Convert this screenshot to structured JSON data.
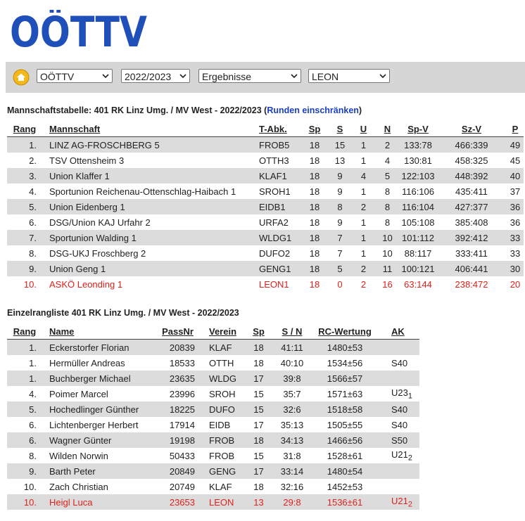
{
  "logo": "OÖTTV",
  "toolbar": {
    "selects": [
      "OÖTTV",
      "2022/2023",
      "Ergebnisse",
      "LEON"
    ]
  },
  "team_table": {
    "title": "Mannschaftstabelle: 401 RK Linz Umg. / MV West - 2022/2023 (",
    "link": "Runden einschränken",
    "title_end": ")",
    "headers": [
      "Rang",
      "Mannschaft",
      "T-Abk.",
      "Sp",
      "S",
      "U",
      "N",
      "Sp-V",
      "Sz-V",
      "P"
    ],
    "rows": [
      [
        "1.",
        "LINZ AG-FROSCHBERG 5",
        "FROB5",
        "18",
        "15",
        "1",
        "2",
        "133:78",
        "466:339",
        "49"
      ],
      [
        "2.",
        "TSV Ottensheim 3",
        "OTTH3",
        "18",
        "13",
        "1",
        "4",
        "130:81",
        "458:325",
        "45"
      ],
      [
        "3.",
        "Union Klaffer 1",
        "KLAF1",
        "18",
        "9",
        "4",
        "5",
        "122:103",
        "448:392",
        "40"
      ],
      [
        "4.",
        "Sportunion Reichenau-Ottenschlag-Haibach 1",
        "SROH1",
        "18",
        "9",
        "1",
        "8",
        "116:106",
        "435:411",
        "37"
      ],
      [
        "5.",
        "Union Eidenberg 1",
        "EIDB1",
        "18",
        "8",
        "2",
        "8",
        "116:104",
        "427:377",
        "36"
      ],
      [
        "6.",
        "DSG/Union KAJ Urfahr 2",
        "URFA2",
        "18",
        "9",
        "1",
        "8",
        "105:108",
        "385:408",
        "36"
      ],
      [
        "7.",
        "Sportunion Walding 1",
        "WLDG1",
        "18",
        "7",
        "1",
        "10",
        "101:112",
        "392:412",
        "33"
      ],
      [
        "8.",
        "DSG-UKJ Froschberg 2",
        "DUFO2",
        "18",
        "7",
        "1",
        "10",
        "88:117",
        "333:411",
        "33"
      ],
      [
        "9.",
        "Union Geng 1",
        "GENG1",
        "18",
        "5",
        "2",
        "11",
        "100:121",
        "406:441",
        "30"
      ],
      [
        "10.",
        "ASKÖ Leonding 1",
        "LEON1",
        "18",
        "0",
        "2",
        "16",
        "63:144",
        "238:472",
        "20"
      ]
    ]
  },
  "player_table": {
    "title": "Einzelrangliste 401 RK Linz Umg. / MV West - 2022/2023",
    "headers": [
      "Rang",
      "Name",
      "PassNr",
      "Verein",
      "Sp",
      "S / N",
      "RC-Wertung",
      "AK"
    ],
    "rows": [
      [
        "1.",
        "Eckerstorfer Florian",
        "20839",
        "KLAF",
        "18",
        "41:11",
        "1480±53",
        ""
      ],
      [
        "1.",
        "Hermüller Andreas",
        "18533",
        "OTTH",
        "18",
        "40:10",
        "1534±56",
        "S40"
      ],
      [
        "1.",
        "Buchberger Michael",
        "23635",
        "WLDG",
        "17",
        "39:8",
        "1566±57",
        ""
      ],
      [
        "4.",
        "Poimer Marcel",
        "23996",
        "SROH",
        "15",
        "35:7",
        "1571±63",
        {
          "label": "U23",
          "sub": "1"
        }
      ],
      [
        "5.",
        "Hochedlinger Günther",
        "18225",
        "DUFO",
        "15",
        "32:6",
        "1518±58",
        "S40"
      ],
      [
        "6.",
        "Lichtenberger Herbert",
        "17914",
        "EIDB",
        "17",
        "35:13",
        "1505±55",
        "S40"
      ],
      [
        "6.",
        "Wagner Günter",
        "19198",
        "FROB",
        "18",
        "34:13",
        "1466±56",
        "S50"
      ],
      [
        "8.",
        "Wilden Norwin",
        "50433",
        "FROB",
        "15",
        "31:8",
        "1528±61",
        {
          "label": "U21",
          "sub": "2"
        }
      ],
      [
        "9.",
        "Barth Peter",
        "20849",
        "GENG",
        "17",
        "33:14",
        "1480±54",
        ""
      ],
      [
        "10.",
        "Zach Christian",
        "20749",
        "KLAF",
        "18",
        "32:16",
        "1452±53",
        ""
      ],
      [
        "10.",
        "Heigl Luca",
        "23653",
        "LEON",
        "13",
        "29:8",
        "1536±61",
        {
          "label": "U21",
          "sub": "2"
        }
      ]
    ]
  }
}
